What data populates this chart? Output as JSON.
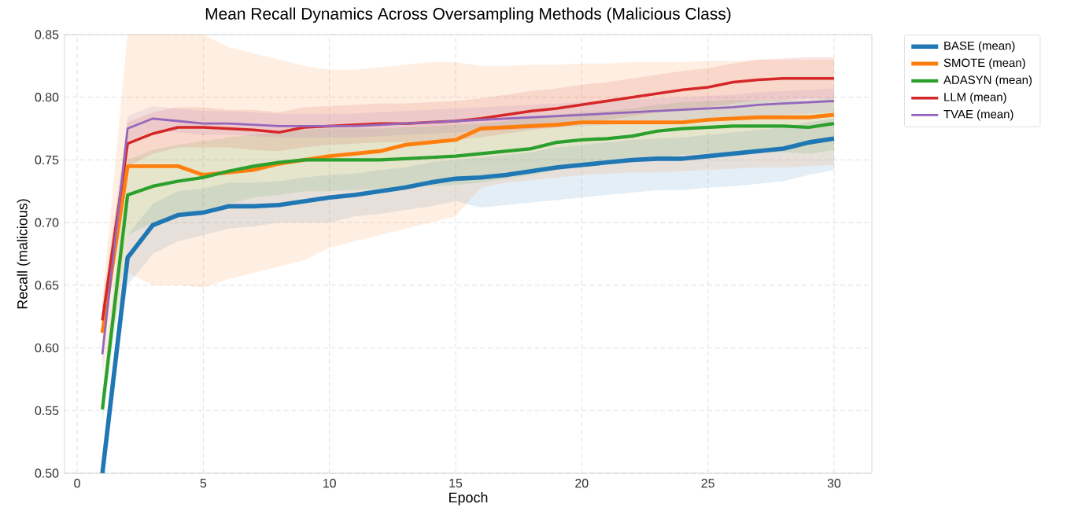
{
  "chart_data": {
    "type": "line",
    "title": "Mean Recall Dynamics Across Oversampling Methods (Malicious Class)",
    "xlabel": "Epoch",
    "ylabel": "Recall (malicious)",
    "x": [
      1,
      2,
      3,
      4,
      5,
      6,
      7,
      8,
      9,
      10,
      11,
      12,
      13,
      14,
      15,
      16,
      17,
      18,
      19,
      20,
      21,
      22,
      23,
      24,
      25,
      26,
      27,
      28,
      29,
      30
    ],
    "xlim": [
      -0.5,
      31.5
    ],
    "xticks": [
      0,
      5,
      10,
      15,
      20,
      25,
      30
    ],
    "ylim": [
      0.5,
      0.85
    ],
    "yticks": [
      {
        "value": 0.5,
        "label": "0.50"
      },
      0.55,
      {
        "value": 0.6,
        "label": "0.60"
      },
      0.65,
      {
        "value": 0.7,
        "label": "0.70"
      },
      0.75,
      {
        "value": 0.8,
        "label": "0.80"
      },
      0.85
    ],
    "grid": true,
    "legend": "right",
    "line_style": "solid",
    "marker": "none",
    "series": [
      {
        "name": "BASE (mean)",
        "color": "#1f77b4",
        "values": [
          0.5,
          0.672,
          0.698,
          0.706,
          0.708,
          0.713,
          0.713,
          0.714,
          0.717,
          0.72,
          0.722,
          0.725,
          0.728,
          0.732,
          0.735,
          0.736,
          0.738,
          0.741,
          0.744,
          0.746,
          0.748,
          0.75,
          0.751,
          0.751,
          0.753,
          0.755,
          0.757,
          0.759,
          0.764,
          0.767
        ],
        "lower": [
          0.5,
          0.65,
          0.675,
          0.685,
          0.69,
          0.695,
          0.697,
          0.7,
          0.7,
          0.7,
          0.705,
          0.707,
          0.71,
          0.713,
          0.717,
          0.712,
          0.714,
          0.716,
          0.718,
          0.72,
          0.722,
          0.724,
          0.726,
          0.726,
          0.728,
          0.729,
          0.731,
          0.733,
          0.738,
          0.742
        ],
        "upper": [
          0.51,
          0.69,
          0.715,
          0.725,
          0.727,
          0.732,
          0.732,
          0.733,
          0.736,
          0.738,
          0.739,
          0.742,
          0.744,
          0.748,
          0.75,
          0.752,
          0.754,
          0.756,
          0.76,
          0.762,
          0.764,
          0.766,
          0.767,
          0.768,
          0.77,
          0.772,
          0.774,
          0.776,
          0.78,
          0.783
        ]
      },
      {
        "name": "SMOTE (mean)",
        "color": "#ff7f0e",
        "values": [
          0.612,
          0.745,
          0.745,
          0.745,
          0.738,
          0.74,
          0.742,
          0.747,
          0.75,
          0.753,
          0.755,
          0.757,
          0.762,
          0.764,
          0.766,
          0.775,
          0.776,
          0.777,
          0.778,
          0.78,
          0.78,
          0.78,
          0.78,
          0.78,
          0.782,
          0.783,
          0.784,
          0.784,
          0.784,
          0.786
        ],
        "lower": [
          0.58,
          0.66,
          0.65,
          0.65,
          0.648,
          0.655,
          0.66,
          0.665,
          0.67,
          0.68,
          0.685,
          0.69,
          0.695,
          0.7,
          0.705,
          0.728,
          0.732,
          0.734,
          0.736,
          0.738,
          0.739,
          0.74,
          0.74,
          0.741,
          0.742,
          0.743,
          0.744,
          0.744,
          0.745,
          0.746
        ],
        "upper": [
          0.64,
          0.85,
          0.85,
          0.85,
          0.85,
          0.84,
          0.835,
          0.83,
          0.825,
          0.822,
          0.822,
          0.824,
          0.826,
          0.828,
          0.828,
          0.825,
          0.825,
          0.826,
          0.826,
          0.827,
          0.827,
          0.828,
          0.828,
          0.828,
          0.829,
          0.829,
          0.83,
          0.83,
          0.83,
          0.83
        ]
      },
      {
        "name": "ADASYN (mean)",
        "color": "#2ca02c",
        "values": [
          0.551,
          0.722,
          0.729,
          0.733,
          0.736,
          0.741,
          0.745,
          0.748,
          0.75,
          0.75,
          0.75,
          0.75,
          0.751,
          0.752,
          0.753,
          0.755,
          0.757,
          0.759,
          0.764,
          0.766,
          0.767,
          0.769,
          0.773,
          0.775,
          0.776,
          0.777,
          0.777,
          0.777,
          0.776,
          0.779
        ],
        "lower": [
          0.54,
          0.69,
          0.7,
          0.705,
          0.71,
          0.715,
          0.72,
          0.722,
          0.725,
          0.725,
          0.726,
          0.727,
          0.728,
          0.729,
          0.73,
          0.732,
          0.735,
          0.738,
          0.742,
          0.745,
          0.747,
          0.749,
          0.752,
          0.754,
          0.755,
          0.756,
          0.756,
          0.756,
          0.755,
          0.758
        ],
        "upper": [
          0.565,
          0.75,
          0.758,
          0.762,
          0.765,
          0.768,
          0.77,
          0.772,
          0.774,
          0.775,
          0.775,
          0.775,
          0.776,
          0.777,
          0.778,
          0.779,
          0.781,
          0.783,
          0.786,
          0.788,
          0.789,
          0.791,
          0.794,
          0.796,
          0.797,
          0.798,
          0.798,
          0.798,
          0.797,
          0.8
        ]
      },
      {
        "name": "LLM (mean)",
        "color": "#d62728",
        "values": [
          0.622,
          0.763,
          0.771,
          0.776,
          0.776,
          0.775,
          0.774,
          0.772,
          0.776,
          0.777,
          0.778,
          0.779,
          0.779,
          0.78,
          0.781,
          0.783,
          0.786,
          0.789,
          0.791,
          0.794,
          0.797,
          0.8,
          0.803,
          0.806,
          0.808,
          0.812,
          0.814,
          0.815,
          0.815,
          0.815
        ],
        "lower": [
          0.61,
          0.745,
          0.755,
          0.76,
          0.76,
          0.76,
          0.758,
          0.757,
          0.76,
          0.762,
          0.763,
          0.764,
          0.764,
          0.765,
          0.766,
          0.768,
          0.771,
          0.774,
          0.776,
          0.779,
          0.782,
          0.785,
          0.788,
          0.79,
          0.792,
          0.795,
          0.798,
          0.798,
          0.799,
          0.799
        ],
        "upper": [
          0.635,
          0.78,
          0.788,
          0.792,
          0.792,
          0.79,
          0.79,
          0.788,
          0.792,
          0.793,
          0.794,
          0.795,
          0.795,
          0.796,
          0.797,
          0.799,
          0.802,
          0.805,
          0.807,
          0.81,
          0.812,
          0.815,
          0.818,
          0.821,
          0.823,
          0.827,
          0.83,
          0.831,
          0.832,
          0.832
        ]
      },
      {
        "name": "TVAE (mean)",
        "color": "#9467bd",
        "values": [
          0.595,
          0.775,
          0.783,
          0.781,
          0.779,
          0.779,
          0.778,
          0.777,
          0.777,
          0.777,
          0.777,
          0.778,
          0.779,
          0.78,
          0.781,
          0.782,
          0.783,
          0.784,
          0.785,
          0.786,
          0.787,
          0.788,
          0.789,
          0.79,
          0.791,
          0.792,
          0.794,
          0.795,
          0.796,
          0.797
        ],
        "lower": [
          0.585,
          0.765,
          0.773,
          0.772,
          0.77,
          0.77,
          0.769,
          0.768,
          0.768,
          0.768,
          0.768,
          0.769,
          0.77,
          0.771,
          0.772,
          0.773,
          0.774,
          0.775,
          0.776,
          0.777,
          0.778,
          0.779,
          0.78,
          0.781,
          0.782,
          0.783,
          0.785,
          0.786,
          0.787,
          0.788
        ],
        "upper": [
          0.605,
          0.785,
          0.793,
          0.791,
          0.789,
          0.789,
          0.788,
          0.787,
          0.787,
          0.787,
          0.787,
          0.788,
          0.789,
          0.79,
          0.791,
          0.792,
          0.793,
          0.794,
          0.795,
          0.796,
          0.797,
          0.798,
          0.799,
          0.8,
          0.801,
          0.802,
          0.804,
          0.805,
          0.806,
          0.807
        ]
      }
    ]
  }
}
